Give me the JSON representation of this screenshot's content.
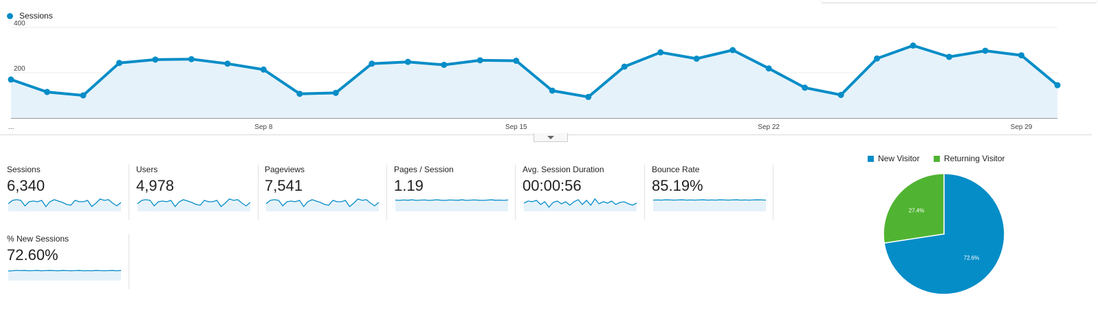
{
  "colors": {
    "series": "#058dc7",
    "fill": "#e6f2fa",
    "returning": "#50b432"
  },
  "main_chart": {
    "legend": "Sessions",
    "y_ticks": [
      "400",
      "200"
    ],
    "x_ticks": [
      "...",
      "Sep 8",
      "Sep 15",
      "Sep 22",
      "Sep 29"
    ],
    "chart_data": {
      "type": "line",
      "series": [
        {
          "name": "Sessions",
          "values": [
            170,
            115,
            100,
            243,
            258,
            260,
            240,
            214,
            107,
            111,
            240,
            248,
            235,
            255,
            253,
            121,
            93,
            227,
            290,
            262,
            300,
            219,
            134,
            102,
            263,
            320,
            270,
            297,
            277,
            145
          ]
        }
      ],
      "ylim": [
        0,
        400
      ],
      "y_ticks": [
        200,
        400
      ]
    }
  },
  "metrics": [
    {
      "label": "Sessions",
      "value": "6,340",
      "spark": [
        0.55,
        0.8,
        0.85,
        0.8,
        0.4,
        0.7,
        0.75,
        0.7,
        0.8,
        0.35,
        0.7,
        0.85,
        0.75,
        0.65,
        0.5,
        0.45,
        0.8,
        0.7,
        0.7,
        0.8,
        0.35,
        0.6,
        0.9,
        0.8,
        0.85,
        0.6,
        0.4,
        0.65
      ]
    },
    {
      "label": "Users",
      "value": "4,978",
      "spark": [
        0.55,
        0.8,
        0.85,
        0.8,
        0.4,
        0.7,
        0.75,
        0.7,
        0.8,
        0.35,
        0.7,
        0.85,
        0.75,
        0.65,
        0.5,
        0.45,
        0.8,
        0.7,
        0.7,
        0.8,
        0.35,
        0.6,
        0.9,
        0.8,
        0.85,
        0.6,
        0.4,
        0.65
      ]
    },
    {
      "label": "Pageviews",
      "value": "7,541",
      "spark": [
        0.55,
        0.8,
        0.85,
        0.8,
        0.4,
        0.7,
        0.75,
        0.7,
        0.8,
        0.35,
        0.7,
        0.85,
        0.75,
        0.65,
        0.5,
        0.45,
        0.8,
        0.7,
        0.7,
        0.8,
        0.35,
        0.6,
        0.9,
        0.8,
        0.85,
        0.6,
        0.4,
        0.65
      ]
    },
    {
      "label": "Pages / Session",
      "value": "1.19",
      "spark": [
        0.82,
        0.8,
        0.83,
        0.81,
        0.84,
        0.8,
        0.82,
        0.83,
        0.8,
        0.82,
        0.84,
        0.81,
        0.8,
        0.83,
        0.82,
        0.81,
        0.84,
        0.8,
        0.82,
        0.83,
        0.81,
        0.8,
        0.82,
        0.84,
        0.81,
        0.82,
        0.8,
        0.83
      ]
    },
    {
      "label": "Avg. Session Duration",
      "value": "00:00:56",
      "spark": [
        0.6,
        0.75,
        0.7,
        0.8,
        0.5,
        0.7,
        0.3,
        0.65,
        0.75,
        0.55,
        0.7,
        0.45,
        0.7,
        0.85,
        0.5,
        0.8,
        0.45,
        0.9,
        0.55,
        0.7,
        0.6,
        0.75,
        0.5,
        0.65,
        0.7,
        0.55,
        0.45,
        0.6
      ]
    },
    {
      "label": "Bounce Rate",
      "value": "85.19%",
      "spark": [
        0.82,
        0.83,
        0.82,
        0.84,
        0.83,
        0.82,
        0.83,
        0.84,
        0.82,
        0.83,
        0.82,
        0.83,
        0.84,
        0.82,
        0.83,
        0.82,
        0.84,
        0.83,
        0.82,
        0.83,
        0.84,
        0.82,
        0.83,
        0.82,
        0.83,
        0.84,
        0.83,
        0.82
      ]
    },
    {
      "label": "% New Sessions",
      "value": "72.60%",
      "spark": [
        0.7,
        0.72,
        0.75,
        0.73,
        0.74,
        0.72,
        0.73,
        0.74,
        0.72,
        0.73,
        0.74,
        0.73,
        0.72,
        0.74,
        0.73,
        0.72,
        0.73,
        0.74,
        0.72,
        0.73,
        0.72,
        0.74,
        0.73,
        0.72,
        0.73,
        0.74,
        0.72,
        0.74
      ]
    }
  ],
  "pie": {
    "legend": [
      {
        "label": "New Visitor"
      },
      {
        "label": "Returning Visitor"
      }
    ],
    "chart_data": {
      "type": "pie",
      "slices": [
        {
          "name": "New Visitor",
          "value": 72.6,
          "label": "72.6%"
        },
        {
          "name": "Returning Visitor",
          "value": 27.4,
          "label": "27.4%"
        }
      ]
    }
  }
}
